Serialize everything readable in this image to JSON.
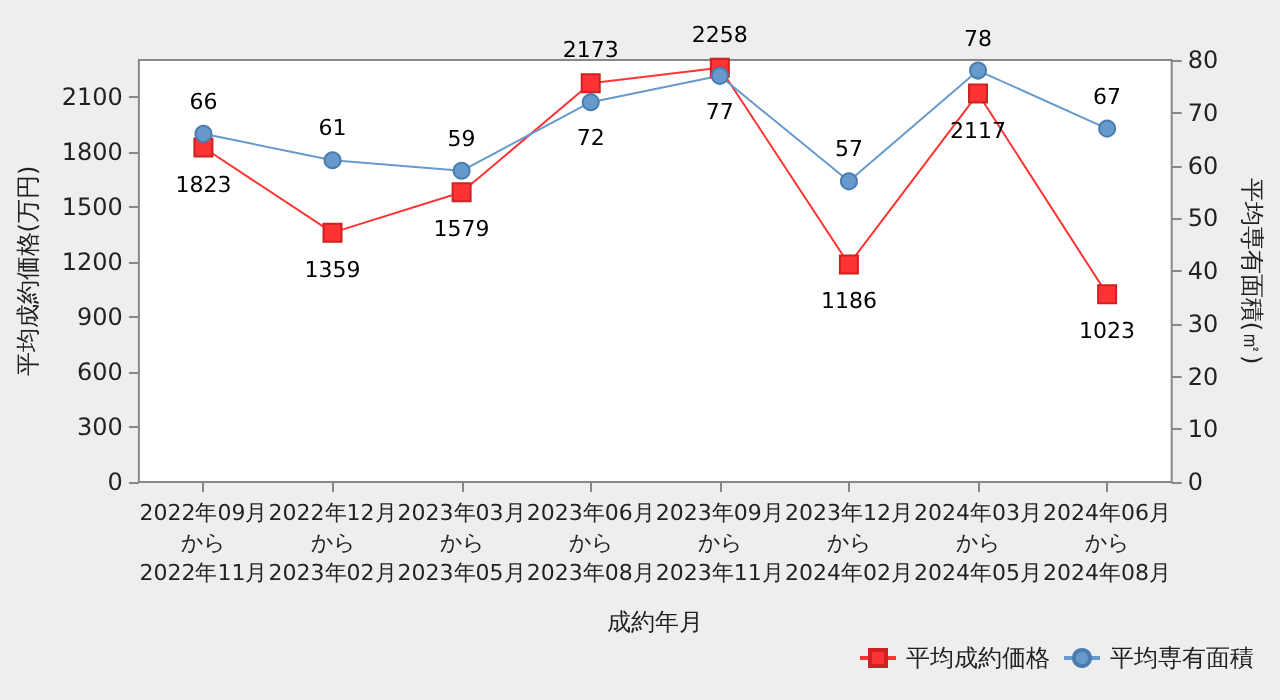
{
  "chart_data": {
    "type": "line",
    "xlabel": "成約年月",
    "ylabel": "平均成約価格(万円)",
    "y2label": "平均専有面積(㎡)",
    "categories": [
      "2022年09月から2022年11月",
      "2022年12月から2023年02月",
      "2023年03月から2023年05月",
      "2023年06月から2023年08月",
      "2023年09月から2023年11月",
      "2023年12月から2024年02月",
      "2024年03月から2024年05月",
      "2024年06月から2024年08月"
    ],
    "series": [
      {
        "name": "平均成約価格",
        "color": "#ff3333",
        "marker": "square",
        "values": [
          1823,
          1359,
          1579,
          2173,
          2258,
          1186,
          2117,
          1023
        ]
      },
      {
        "name": "平均専有面積",
        "color": "#6699cc",
        "marker": "circle",
        "axis": "y2",
        "values": [
          66,
          61,
          59,
          72,
          77,
          57,
          78,
          67
        ]
      }
    ],
    "ylim": [
      0,
      2300
    ],
    "yticks": [
      0,
      300,
      600,
      900,
      1200,
      1500,
      1800,
      2100
    ],
    "y2lim": [
      0,
      80
    ],
    "y2ticks": [
      0,
      10,
      20,
      30,
      40,
      50,
      60,
      70,
      80
    ],
    "data_labels": true,
    "grid": false,
    "legend": "bottom right"
  }
}
